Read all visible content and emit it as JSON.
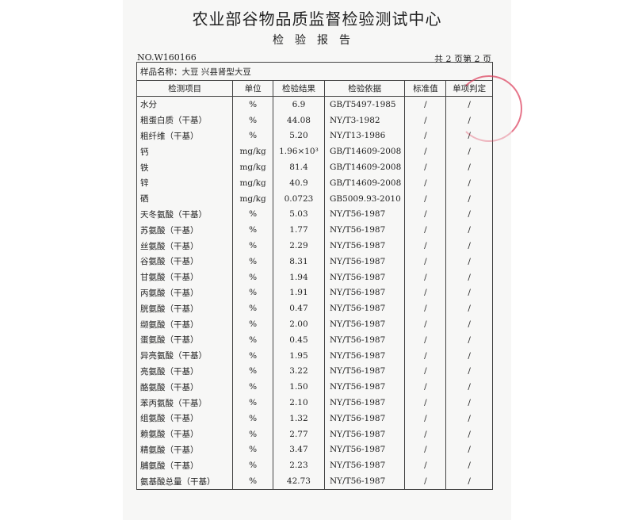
{
  "header": {
    "title": "农业部谷物品质监督检验测试中心",
    "subtitle": "检验报告",
    "report_no": "NO.W160166",
    "page_info": "共 2 页第 2 页"
  },
  "sample": "样品名称：大豆   兴县肾型大豆",
  "columns": [
    "检测项目",
    "单位",
    "检验结果",
    "检验依据",
    "标准值",
    "单项判定"
  ],
  "rows": [
    [
      "水分",
      "%",
      "6.9",
      "GB/T5497-1985",
      "/",
      "/"
    ],
    [
      "粗蛋白质（干基）",
      "%",
      "44.08",
      "NY/T3-1982",
      "/",
      "/"
    ],
    [
      "粗纤维（干基）",
      "%",
      "5.20",
      "NY/T13-1986",
      "/",
      "/"
    ],
    [
      "钙",
      "mg/kg",
      "1.96×10³",
      "GB/T14609-2008",
      "/",
      "/"
    ],
    [
      "铁",
      "mg/kg",
      "81.4",
      "GB/T14609-2008",
      "/",
      "/"
    ],
    [
      "锌",
      "mg/kg",
      "40.9",
      "GB/T14609-2008",
      "/",
      "/"
    ],
    [
      "硒",
      "mg/kg",
      "0.0723",
      "GB5009.93-2010",
      "/",
      "/"
    ],
    [
      "天冬氨酸（干基）",
      "%",
      "5.03",
      "NY/T56-1987",
      "/",
      "/"
    ],
    [
      "苏氨酸（干基）",
      "%",
      "1.77",
      "NY/T56-1987",
      "/",
      "/"
    ],
    [
      "丝氨酸（干基）",
      "%",
      "2.29",
      "NY/T56-1987",
      "/",
      "/"
    ],
    [
      "谷氨酸（干基）",
      "%",
      "8.31",
      "NY/T56-1987",
      "/",
      "/"
    ],
    [
      "甘氨酸（干基）",
      "%",
      "1.94",
      "NY/T56-1987",
      "/",
      "/"
    ],
    [
      "丙氨酸（干基）",
      "%",
      "1.91",
      "NY/T56-1987",
      "/",
      "/"
    ],
    [
      "胱氨酸（干基）",
      "%",
      "0.47",
      "NY/T56-1987",
      "/",
      "/"
    ],
    [
      "缬氨酸（干基）",
      "%",
      "2.00",
      "NY/T56-1987",
      "/",
      "/"
    ],
    [
      "蛋氨酸（干基）",
      "%",
      "0.45",
      "NY/T56-1987",
      "/",
      "/"
    ],
    [
      "异亮氨酸（干基）",
      "%",
      "1.95",
      "NY/T56-1987",
      "/",
      "/"
    ],
    [
      "亮氨酸（干基）",
      "%",
      "3.22",
      "NY/T56-1987",
      "/",
      "/"
    ],
    [
      "酪氨酸（干基）",
      "%",
      "1.50",
      "NY/T56-1987",
      "/",
      "/"
    ],
    [
      "苯丙氨酸（干基）",
      "%",
      "2.10",
      "NY/T56-1987",
      "/",
      "/"
    ],
    [
      "组氨酸（干基）",
      "%",
      "1.32",
      "NY/T56-1987",
      "/",
      "/"
    ],
    [
      "赖氨酸（干基）",
      "%",
      "2.77",
      "NY/T56-1987",
      "/",
      "/"
    ],
    [
      "精氨酸（干基）",
      "%",
      "3.47",
      "NY/T56-1987",
      "/",
      "/"
    ],
    [
      "脯氨酸（干基）",
      "%",
      "2.23",
      "NY/T56-1987",
      "/",
      "/"
    ],
    [
      "氨基酸总量（干基）",
      "%",
      "42.73",
      "NY/T56-1987",
      "/",
      "/"
    ]
  ],
  "stamp_color": "#dc3c5a"
}
